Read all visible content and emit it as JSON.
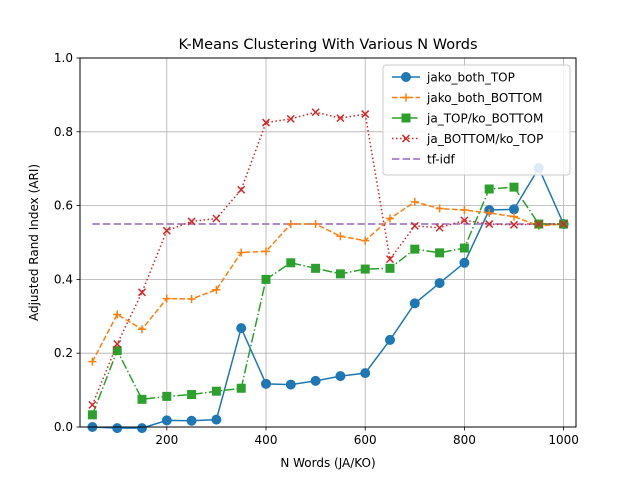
{
  "chart_data": {
    "type": "line",
    "title": "K-Means Clustering With Various N Words",
    "xlabel": "N Words (JA/KO)",
    "ylabel": "Adjusted Rand Index (ARI)",
    "xlim": [
      25,
      1025
    ],
    "ylim": [
      0.0,
      1.0
    ],
    "xticks": [
      200,
      400,
      600,
      800,
      1000
    ],
    "yticks": [
      0.0,
      0.2,
      0.4,
      0.6,
      0.8,
      1.0
    ],
    "xtick_labels": [
      "200",
      "400",
      "600",
      "800",
      "1000"
    ],
    "ytick_labels": [
      "0.0",
      "0.2",
      "0.4",
      "0.6",
      "0.8",
      "1.0"
    ],
    "grid": true,
    "legend_position": "top-right",
    "x": [
      50,
      100,
      150,
      200,
      250,
      300,
      350,
      400,
      450,
      500,
      550,
      600,
      650,
      700,
      750,
      800,
      850,
      900,
      950,
      1000
    ],
    "series": [
      {
        "name": "jako_both_TOP",
        "color": "#1f77b4",
        "linestyle": "solid",
        "marker": "circle",
        "values": [
          0.0,
          -0.003,
          -0.003,
          0.018,
          0.017,
          0.02,
          0.268,
          0.117,
          0.115,
          0.125,
          0.138,
          0.146,
          0.236,
          0.335,
          0.39,
          0.445,
          0.588,
          0.59,
          0.702,
          0.55
        ]
      },
      {
        "name": "jako_both_BOTTOM",
        "color": "#ff7f0e",
        "linestyle": "dashed",
        "marker": "plus",
        "values": [
          0.177,
          0.305,
          0.265,
          0.348,
          0.347,
          0.372,
          0.473,
          0.476,
          0.55,
          0.55,
          0.517,
          0.505,
          0.565,
          0.61,
          0.592,
          0.588,
          0.58,
          0.57,
          0.545,
          0.55
        ]
      },
      {
        "name": "ja_TOP/ko_BOTTOM",
        "color": "#2ca02c",
        "linestyle": "dashdot",
        "marker": "square",
        "values": [
          0.033,
          0.207,
          0.075,
          0.083,
          0.088,
          0.097,
          0.105,
          0.4,
          0.445,
          0.43,
          0.415,
          0.428,
          0.43,
          0.482,
          0.472,
          0.485,
          0.645,
          0.65,
          0.55,
          0.55
        ]
      },
      {
        "name": "ja_BOTTOM/ko_TOP",
        "color": "#d62728",
        "linestyle": "dotted",
        "marker": "x",
        "values": [
          0.06,
          0.225,
          0.365,
          0.532,
          0.557,
          0.565,
          0.643,
          0.825,
          0.835,
          0.853,
          0.837,
          0.848,
          0.455,
          0.545,
          0.54,
          0.56,
          0.55,
          0.548,
          0.55,
          0.55
        ]
      },
      {
        "name": "tf-idf",
        "color": "#9467bd",
        "linestyle": "longdash",
        "marker": "none",
        "values": [
          0.55,
          0.55,
          0.55,
          0.55,
          0.55,
          0.55,
          0.55,
          0.55,
          0.55,
          0.55,
          0.55,
          0.55,
          0.55,
          0.55,
          0.55,
          0.55,
          0.55,
          0.55,
          0.55,
          0.55
        ]
      }
    ]
  }
}
